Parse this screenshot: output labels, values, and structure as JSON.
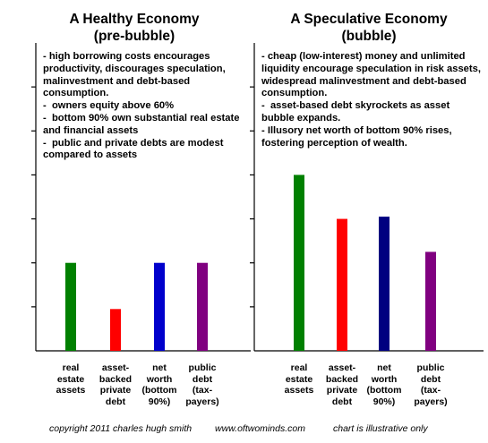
{
  "chart_data": [
    {
      "type": "bar",
      "title": "A Healthy Economy",
      "subtitle": "(pre-bubble)",
      "notes": [
        "- high borrowing costs encourages productivity, discourages speculation, malinvestment and debt-based consumption.",
        "-  owners equity above 60%",
        "-  bottom 90% own substantial real estate and financial assets",
        "-  public and private debts are modest compared to assets"
      ],
      "categories": [
        "real estate assets",
        "asset-backed private debt",
        "net worth (bottom 90%)",
        "public debt (tax-payers)"
      ],
      "category_lines": [
        [
          "real",
          "estate",
          "assets"
        ],
        [
          "asset-",
          "backed",
          "private",
          "debt"
        ],
        [
          "net",
          "worth",
          "(bottom",
          "90%)"
        ],
        [
          "public",
          "debt",
          "(tax-",
          "payers)"
        ]
      ],
      "values": [
        2.0,
        0.95,
        2.0,
        2.0
      ],
      "colors": [
        "#008000",
        "#ff0000",
        "#0000cc",
        "#800080"
      ],
      "ylim": [
        0,
        7
      ],
      "xlabel": "",
      "ylabel": "",
      "grid": false,
      "legend": "none"
    },
    {
      "type": "bar",
      "title": "A Speculative Economy",
      "subtitle": "(bubble)",
      "notes": [
        "- cheap (low-interest) money and unlimited liquidity encourage speculation in risk assets, widespread malinvestment and debt-based consumption.",
        "-  asset-based debt skyrockets as asset bubble expands.",
        "- Illusory net worth of bottom 90% rises, fostering perception of wealth."
      ],
      "categories": [
        "real estate assets",
        "asset-backed private debt",
        "net worth (bottom 90%)",
        "public debt (tax-payers)"
      ],
      "category_lines": [
        [
          "real",
          "estate",
          "assets"
        ],
        [
          "asset-",
          "backed",
          "private",
          "debt"
        ],
        [
          "net",
          "worth",
          "(bottom",
          "90%)"
        ],
        [
          "public",
          "debt",
          "(tax-",
          "payers)"
        ]
      ],
      "values": [
        4.0,
        3.0,
        3.05,
        2.25
      ],
      "colors": [
        "#008000",
        "#ff0000",
        "#000080",
        "#800080"
      ],
      "ylim": [
        0,
        7
      ],
      "xlabel": "",
      "ylabel": "",
      "grid": false,
      "legend": "none"
    }
  ],
  "footer": {
    "copyright": "copyright 2011 charles hugh smith",
    "website": "www.oftwominds.com",
    "disclaimer": "chart is illustrative only"
  }
}
